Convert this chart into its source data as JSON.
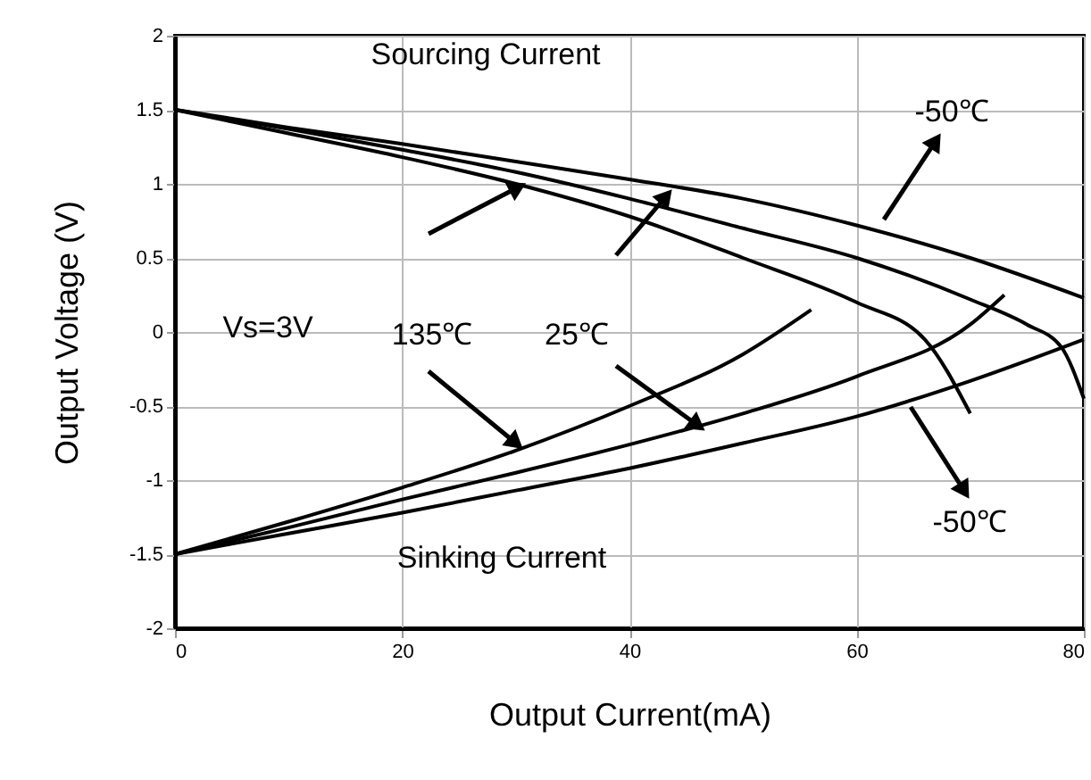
{
  "chart_data": {
    "type": "line",
    "xlabel": "Output Current(mA)",
    "ylabel": "Output Voltage (V)",
    "xlim": [
      0,
      80
    ],
    "xticks": [
      0,
      20,
      40,
      60,
      80
    ],
    "ylim": [
      -2,
      2
    ],
    "yticks": [
      -2,
      -1.5,
      -1,
      -0.5,
      0,
      0.5,
      1,
      1.5,
      2
    ],
    "grid": true,
    "marker": "none",
    "line_style": "solid",
    "annotations": [
      "Sourcing Current",
      "Vs=3V",
      {
        "text": "135℃",
        "x": 30,
        "y": -0.75
      },
      {
        "text": "25℃",
        "x": 46,
        "y": -0.63
      },
      "-50℃",
      "-50℃",
      "Sinking Current"
    ],
    "series": [
      {
        "color": "#000000",
        "x": [
          0,
          10,
          20,
          30,
          40,
          50,
          60,
          70,
          80
        ],
        "values": [
          1.5,
          1.38,
          1.27,
          1.15,
          1.03,
          0.9,
          0.72,
          0.5,
          0.23
        ]
      },
      {
        "color": "#000000",
        "x": [
          0,
          10,
          20,
          30,
          40,
          50,
          60,
          70,
          75,
          78,
          80
        ],
        "values": [
          1.5,
          1.37,
          1.23,
          1.08,
          0.9,
          0.7,
          0.5,
          0.22,
          0.05,
          -0.1,
          -0.45
        ]
      },
      {
        "color": "#000000",
        "x": [
          0,
          10,
          20,
          30,
          40,
          50,
          60,
          66,
          70
        ],
        "values": [
          1.5,
          1.34,
          1.18,
          1.0,
          0.78,
          0.5,
          0.2,
          -0.05,
          -0.55
        ]
      },
      {
        "color": "#000000",
        "x": [
          0,
          10,
          20,
          30,
          40,
          50,
          56
        ],
        "values": [
          -1.5,
          -1.28,
          -1.05,
          -0.8,
          -0.5,
          -0.15,
          0.15
        ]
      },
      {
        "color": "#000000",
        "x": [
          0,
          10,
          20,
          30,
          40,
          50,
          60,
          70,
          73
        ],
        "values": [
          -1.5,
          -1.32,
          -1.13,
          -0.95,
          -0.76,
          -0.55,
          -0.3,
          0.05,
          0.25
        ]
      },
      {
        "color": "#000000",
        "x": [
          0,
          10,
          20,
          30,
          40,
          50,
          60,
          70,
          80
        ],
        "values": [
          -1.5,
          -1.36,
          -1.22,
          -1.07,
          -0.92,
          -0.75,
          -0.57,
          -0.33,
          -0.05
        ]
      }
    ]
  }
}
